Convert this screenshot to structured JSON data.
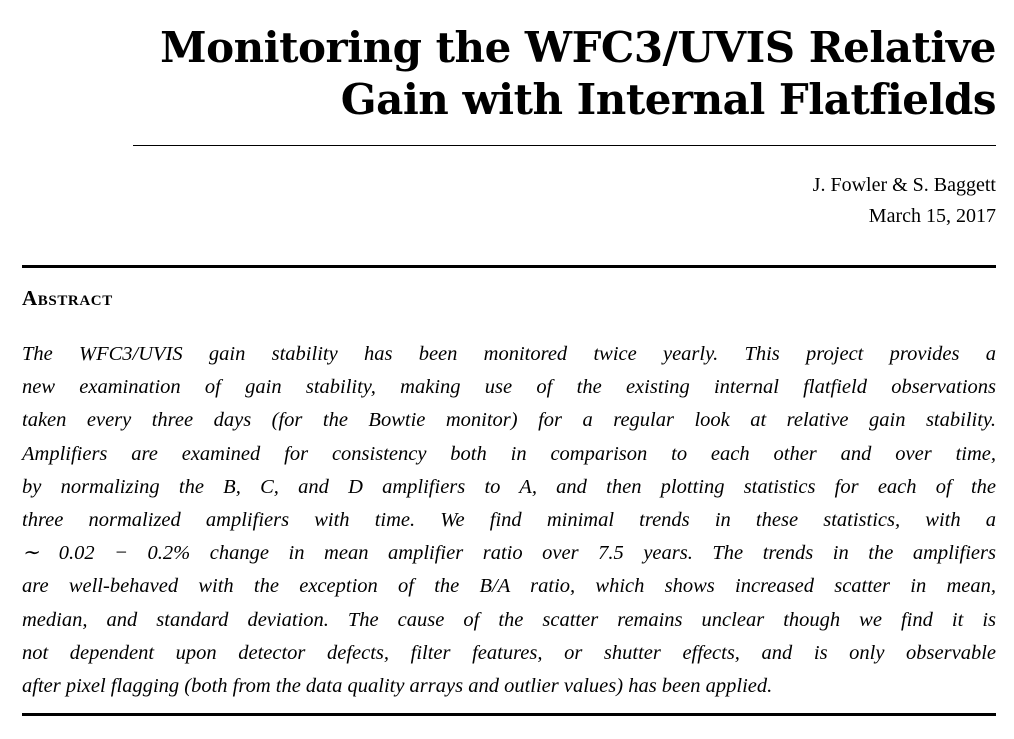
{
  "paper": {
    "title_lines": [
      "Monitoring the WFC3/UVIS Relative",
      "Gain with Internal Flatfields"
    ],
    "authors": "J. Fowler & S. Baggett",
    "date": "March 15, 2017",
    "abstract_heading": "Abstract",
    "abstract_lines": [
      "The WFC3/UVIS gain stability has been monitored twice yearly.  This project provides a",
      "new examination of gain stability, making use of the existing internal flatfield observations",
      "taken every three days (for the Bowtie monitor) for a regular look at relative gain stability.",
      "Amplifiers are examined for consistency both in comparison to each other and over time,",
      "by normalizing the B, C, and D amplifiers to A, and then plotting statistics for each of the",
      "three normalized amplifiers with time.  We find minimal trends in these statistics, with a",
      "∼ 0.02 − 0.2% change in mean amplifier ratio over 7.5 years.  The trends in the amplifiers",
      "are well-behaved with the exception of the B/A ratio, which shows increased scatter in mean,",
      "median, and standard deviation.  The cause of the scatter remains unclear though we find it is",
      "not dependent upon detector defects, filter features, or shutter effects, and is only observable",
      "after pixel flagging (both from the data quality arrays and outlier values) has been applied."
    ]
  }
}
